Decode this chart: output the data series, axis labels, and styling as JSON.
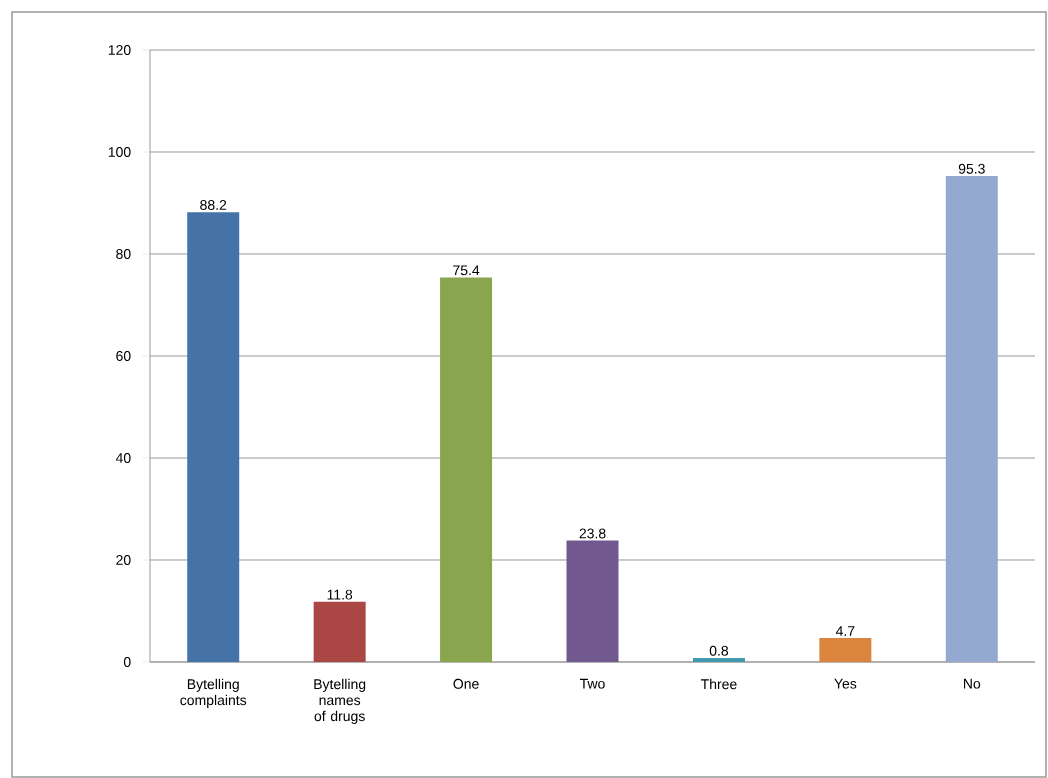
{
  "chart_data": {
    "type": "bar",
    "categories": [
      "Bytelling complaints",
      "Bytelling names of drugs",
      "One",
      "Two",
      "Three",
      "Yes",
      "No"
    ],
    "values": [
      88.2,
      11.8,
      75.4,
      23.8,
      0.8,
      4.7,
      95.3
    ],
    "colors": [
      "#4572a7",
      "#aa4643",
      "#89a54e",
      "#71588f",
      "#4198af",
      "#db843d",
      "#93a9cf"
    ],
    "ylim": [
      0,
      120
    ],
    "yticks": [
      0,
      20,
      40,
      60,
      80,
      100,
      120
    ],
    "grid": "y",
    "data_labels": true
  }
}
